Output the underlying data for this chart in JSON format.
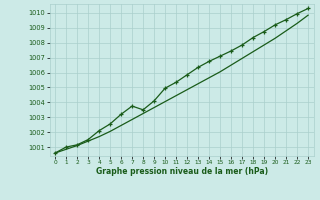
{
  "xlabel": "Graphe pression niveau de la mer (hPa)",
  "background_color": "#cceae7",
  "grid_color": "#aacfcc",
  "line_color": "#1a5c1a",
  "x_ticks": [
    0,
    1,
    2,
    3,
    4,
    5,
    6,
    7,
    8,
    9,
    10,
    11,
    12,
    13,
    14,
    15,
    16,
    17,
    18,
    19,
    20,
    21,
    22,
    23
  ],
  "y_ticks": [
    1001,
    1002,
    1003,
    1004,
    1005,
    1006,
    1007,
    1008,
    1009,
    1010
  ],
  "ylim": [
    1000.4,
    1010.6
  ],
  "xlim": [
    -0.5,
    23.5
  ],
  "series1_smooth": [
    1000.6,
    1000.85,
    1001.1,
    1001.4,
    1001.7,
    1002.05,
    1002.45,
    1002.85,
    1003.25,
    1003.65,
    1004.05,
    1004.45,
    1004.85,
    1005.25,
    1005.65,
    1006.05,
    1006.5,
    1006.95,
    1007.4,
    1007.85,
    1008.3,
    1008.8,
    1009.3,
    1009.85
  ],
  "series2_markers": [
    1000.6,
    1001.0,
    1001.15,
    1001.5,
    1002.1,
    1002.55,
    1003.2,
    1003.75,
    1003.5,
    1004.1,
    1004.95,
    1005.35,
    1005.85,
    1006.35,
    1006.75,
    1007.1,
    1007.45,
    1007.85,
    1008.35,
    1008.75,
    1009.2,
    1009.55,
    1009.95,
    1010.3
  ]
}
